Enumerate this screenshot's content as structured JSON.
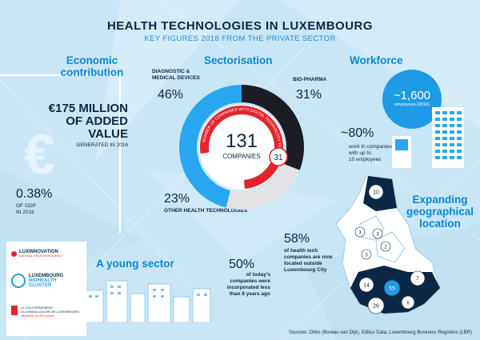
{
  "header": {
    "title": "HEALTH TECHNOLOGIES IN LUXEMBOURG",
    "subtitle": "KEY FIGURES 2018 FROM THE PRIVATE SECTOR"
  },
  "economic": {
    "heading_line1": "Economic",
    "heading_line2": "contribution",
    "value_line1": "€175 MILLION",
    "value_line2": "OF ADDED",
    "value_line3": "VALUE",
    "note": "GENERATED IN 2016",
    "gdp_pct": "0.38%",
    "gdp_note1": "OF GDP",
    "gdp_note2": "IN 2016",
    "currency_symbol": "€"
  },
  "sectorisation": {
    "heading": "Sectorisation",
    "diag_label1": "DIAGNOSTIC &",
    "diag_label2": "MEDICAL DEVICES",
    "diag_pct": "46%",
    "bio_label": "BIO-PHARMA",
    "bio_pct": "31%",
    "other_pct": "23%",
    "other_label": "OTHER HEALTH TECHNOLOGIES",
    "total": "131",
    "total_label": "COMPANIES",
    "digital_count": "31",
    "ring_text": "NUMBER OF COMPANIES WITH DIGITAL TECHNOLOGY FOCUS",
    "colors": {
      "diag": "#29a6f0",
      "bio": "#1c1c24",
      "other": "#e3e3e6",
      "digital": "#e3242b"
    }
  },
  "workforce": {
    "heading": "Workforce",
    "employees": "~1,600",
    "employees_note": "employees (2016)",
    "small_pct": "~80%",
    "small_note1": "work in companies",
    "small_note2": "with up to",
    "small_note3": "10 employees"
  },
  "geo": {
    "heading_line1": "Expanding",
    "heading_line2": "geographical",
    "heading_line3": "location",
    "pct": "58%",
    "note1": "of health tech",
    "note2": "companies are now",
    "note3": "located outside",
    "note4": "Luxembourg City",
    "markers": [
      {
        "label": "10"
      },
      {
        "label": "3"
      },
      {
        "label": "3"
      },
      {
        "label": "2"
      },
      {
        "label": "3"
      },
      {
        "label": "14"
      },
      {
        "label": "55"
      },
      {
        "label": "7"
      },
      {
        "label": "26"
      },
      {
        "label": "6"
      }
    ]
  },
  "young": {
    "heading": "A young sector",
    "pct": "50%",
    "note1": "of today's",
    "note2": "companies were",
    "note3": "incorporated less",
    "note4": "than 8 years ago"
  },
  "logos": {
    "l1": "LUXINNOVATION",
    "l1_sub": "NATIONAL INNOVATION AGENCY",
    "l2a": "LUXEMBOURG",
    "l2b": "BIOHEALTH",
    "l2c": "CLUSTER",
    "l3a": "LE GOUVERNEMENT",
    "l3b": "DU GRAND-DUCHÉ DE LUXEMBOURG",
    "l3c": "Ministère de l'Économie"
  },
  "source": "Sources: Orbis (Bureau van Dijk), Editus Data, Luxembourg Business Registers (LBR)"
}
